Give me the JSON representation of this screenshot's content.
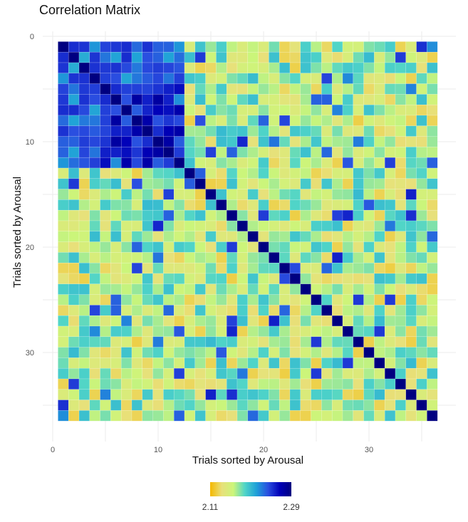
{
  "chart_data": {
    "type": "heatmap",
    "title": "Correlation Matrix",
    "xlabel": "Trials sorted by Arousal",
    "ylabel": "Trials sorted by Arousal",
    "n": 36,
    "x_ticks": [
      0,
      10,
      20,
      30
    ],
    "y_ticks": [
      0,
      10,
      20,
      30
    ],
    "xlim": [
      0,
      36.5
    ],
    "ylim": [
      0,
      36.5
    ],
    "grid": true,
    "legend": {
      "position": "bottom",
      "min_label": "2.11",
      "max_label": "2.29",
      "min": 2.11,
      "max": 2.29,
      "colors": [
        "#f5b800",
        "#e8e07a",
        "#ccf57a",
        "#4fd4c8",
        "#1ea0d8",
        "#2a4ee0",
        "#0000b8",
        "#000080"
      ]
    },
    "row_pattern_seed": 7,
    "blocks": [
      {
        "rows": [
          1,
          12
        ],
        "cols": [
          1,
          12
        ],
        "level": 0.78
      },
      {
        "rows": [
          5,
          12
        ],
        "cols": [
          5,
          12
        ],
        "level": 0.92
      }
    ]
  }
}
